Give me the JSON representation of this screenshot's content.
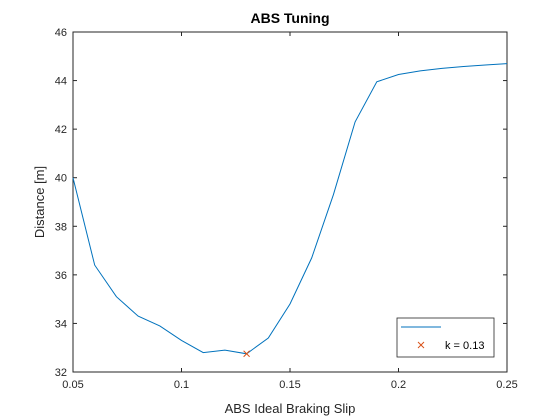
{
  "chart_data": {
    "type": "line",
    "title": "ABS Tuning",
    "xlabel": "ABS Ideal Braking Slip",
    "ylabel": "Distance [m]",
    "xlim": [
      0.05,
      0.25
    ],
    "ylim": [
      32,
      46
    ],
    "x_ticks": [
      0.05,
      0.1,
      0.15,
      0.2,
      0.25
    ],
    "x_tick_labels": [
      "0.05",
      "0.1",
      "0.15",
      "0.2",
      "0.25"
    ],
    "y_ticks": [
      32,
      34,
      36,
      38,
      40,
      42,
      44,
      46
    ],
    "y_tick_labels": [
      "32",
      "34",
      "36",
      "38",
      "40",
      "42",
      "44",
      "46"
    ],
    "grid": false,
    "legend_placement": "bottom-right",
    "series": [
      {
        "name": "",
        "color": "#0072BD",
        "marker": "none",
        "x": [
          0.05,
          0.06,
          0.07,
          0.08,
          0.09,
          0.1,
          0.11,
          0.12,
          0.13,
          0.14,
          0.15,
          0.16,
          0.17,
          0.18,
          0.19,
          0.2,
          0.21,
          0.22,
          0.23,
          0.24,
          0.25
        ],
        "y": [
          40.0,
          36.4,
          35.1,
          34.3,
          33.9,
          33.3,
          32.8,
          32.9,
          32.75,
          33.4,
          34.8,
          36.7,
          39.3,
          42.3,
          43.95,
          44.25,
          44.4,
          44.5,
          44.58,
          44.64,
          44.7
        ]
      },
      {
        "name": "k = 0.13",
        "color": "#D95319",
        "marker": "x",
        "x": [
          0.13
        ],
        "y": [
          32.75
        ]
      }
    ]
  }
}
